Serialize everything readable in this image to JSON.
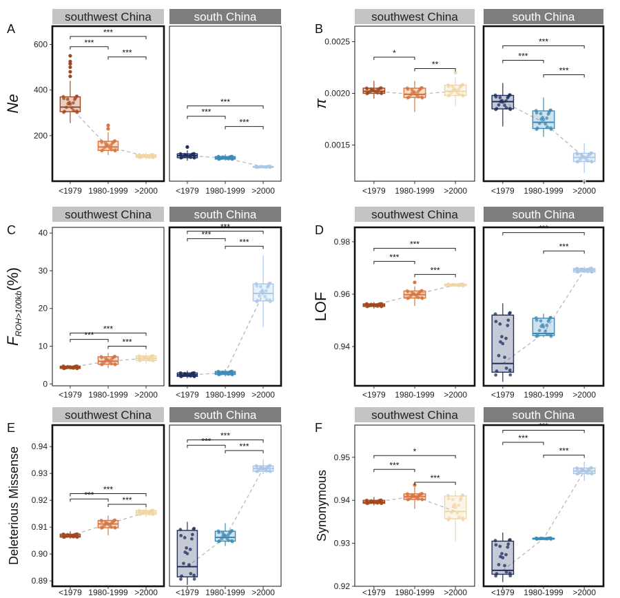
{
  "groups": {
    "categories": [
      "<1979",
      "1980-1999",
      ">2000"
    ],
    "colors": {
      "southwest China": [
        "#a0471d",
        "#d8743d",
        "#f0d6a6"
      ],
      "south China": [
        "#1d2c5c",
        "#3b8ab8",
        "#a9c6e6"
      ]
    },
    "strip_colors": {
      "southwest China": "#c4c4c4",
      "south China": "#7d7d7d"
    }
  },
  "chart_data": [
    {
      "type": "box",
      "panel": "A",
      "ylabel": "Ne",
      "ylabel_italic": true,
      "ylim": [
        0,
        680
      ],
      "yticks": [
        200,
        400,
        600
      ],
      "tick_labels": [
        "200",
        "400",
        "600"
      ],
      "facets": [
        {
          "strip": "southwest China",
          "border": "thick",
          "boxes": [
            {
              "cat": "<1979",
              "min": 255,
              "q1": 305,
              "median": 325,
              "q3": 370,
              "max": 440,
              "outliers": [
                460,
                480,
                500,
                515,
                525,
                550
              ]
            },
            {
              "cat": "1980-1999",
              "min": 115,
              "q1": 135,
              "median": 150,
              "q3": 175,
              "max": 215,
              "outliers": [
                230,
                245
              ]
            },
            {
              "cat": ">2000",
              "min": 95,
              "q1": 104,
              "median": 110,
              "q3": 116,
              "max": 125,
              "outliers": []
            }
          ],
          "brackets": [
            {
              "from": 0,
              "to": 1,
              "y": 590,
              "label": "***"
            },
            {
              "from": 1,
              "to": 2,
              "y": 545,
              "label": "***"
            },
            {
              "from": 0,
              "to": 2,
              "y": 635,
              "label": "***"
            }
          ]
        },
        {
          "strip": "south China",
          "border": "thin",
          "boxes": [
            {
              "cat": "<1979",
              "min": 90,
              "q1": 103,
              "median": 112,
              "q3": 120,
              "max": 135,
              "outliers": [
                150
              ]
            },
            {
              "cat": "1980-1999",
              "min": 90,
              "q1": 97,
              "median": 102,
              "q3": 108,
              "max": 118,
              "outliers": []
            },
            {
              "cat": ">2000",
              "min": 58,
              "q1": 61,
              "median": 63,
              "q3": 65,
              "max": 68,
              "outliers": []
            }
          ],
          "brackets": [
            {
              "from": 0,
              "to": 1,
              "y": 285,
              "label": "***"
            },
            {
              "from": 1,
              "to": 2,
              "y": 240,
              "label": "***"
            },
            {
              "from": 0,
              "to": 2,
              "y": 330,
              "label": "***"
            }
          ]
        }
      ]
    },
    {
      "type": "box",
      "panel": "B",
      "ylabel": "π",
      "ylabel_italic": true,
      "ylim": [
        0.00115,
        0.00265
      ],
      "yticks": [
        0.0015,
        0.002,
        0.0025
      ],
      "tick_labels": [
        "0.0015",
        "0.0020",
        "0.0025"
      ],
      "facets": [
        {
          "strip": "southwest China",
          "border": "thin",
          "boxes": [
            {
              "cat": "<1979",
              "min": 0.00195,
              "q1": 0.002,
              "median": 0.00202,
              "q3": 0.00205,
              "max": 0.00212,
              "outliers": []
            },
            {
              "cat": "1980-1999",
              "min": 0.00182,
              "q1": 0.00196,
              "median": 0.00199,
              "q3": 0.00205,
              "max": 0.00212,
              "outliers": []
            },
            {
              "cat": ">2000",
              "min": 0.00188,
              "q1": 0.00198,
              "median": 0.00202,
              "q3": 0.00208,
              "max": 0.00215,
              "outliers": [
                0.0022
              ]
            }
          ],
          "brackets": [
            {
              "from": 0,
              "to": 1,
              "y": 0.00235,
              "label": "*"
            },
            {
              "from": 1,
              "to": 2,
              "y": 0.00224,
              "label": "**"
            }
          ]
        },
        {
          "strip": "south China",
          "border": "thick",
          "boxes": [
            {
              "cat": "<1979",
              "min": 0.00168,
              "q1": 0.00185,
              "median": 0.00192,
              "q3": 0.00198,
              "max": 0.0021,
              "outliers": []
            },
            {
              "cat": "1980-1999",
              "min": 0.00158,
              "q1": 0.00166,
              "median": 0.00172,
              "q3": 0.00183,
              "max": 0.00196,
              "outliers": []
            },
            {
              "cat": ">2000",
              "min": 0.00123,
              "q1": 0.00134,
              "median": 0.00138,
              "q3": 0.00142,
              "max": 0.00152,
              "outliers": [
                0.00115
              ]
            }
          ],
          "brackets": [
            {
              "from": 0,
              "to": 1,
              "y": 0.00232,
              "label": "***"
            },
            {
              "from": 1,
              "to": 2,
              "y": 0.00218,
              "label": "***"
            },
            {
              "from": 0,
              "to": 2,
              "y": 0.00246,
              "label": "***"
            }
          ]
        }
      ]
    },
    {
      "type": "box",
      "panel": "C",
      "ylabel": "F",
      "ylabel_subscript": "ROH>100kb",
      "ylabel_suffix": "(%)",
      "ylabel_italic": true,
      "ylim": [
        -0.5,
        41.5
      ],
      "yticks": [
        0,
        10,
        20,
        30,
        40
      ],
      "tick_labels": [
        "0",
        "10",
        "20",
        "30",
        "40"
      ],
      "facets": [
        {
          "strip": "southwest China",
          "border": "thin",
          "boxes": [
            {
              "cat": "<1979",
              "min": 3.8,
              "q1": 4.1,
              "median": 4.4,
              "q3": 4.7,
              "max": 5.0,
              "outliers": []
            },
            {
              "cat": "1980-1999",
              "min": 4.2,
              "q1": 5.2,
              "median": 6.0,
              "q3": 7.2,
              "max": 8.2,
              "outliers": []
            },
            {
              "cat": ">2000",
              "min": 5.4,
              "q1": 6.2,
              "median": 6.8,
              "q3": 7.4,
              "max": 8.2,
              "outliers": []
            }
          ],
          "brackets": [
            {
              "from": 0,
              "to": 1,
              "y": 11.8,
              "label": "***"
            },
            {
              "from": 1,
              "to": 2,
              "y": 10.0,
              "label": "***"
            },
            {
              "from": 0,
              "to": 2,
              "y": 13.5,
              "label": "***"
            }
          ]
        },
        {
          "strip": "south China",
          "border": "thick",
          "boxes": [
            {
              "cat": "<1979",
              "min": 1.5,
              "q1": 2.0,
              "median": 2.4,
              "q3": 2.9,
              "max": 3.5,
              "outliers": []
            },
            {
              "cat": "1980-1999",
              "min": 2.0,
              "q1": 2.5,
              "median": 2.9,
              "q3": 3.3,
              "max": 3.9,
              "outliers": []
            },
            {
              "cat": ">2000",
              "min": 15.0,
              "q1": 22.0,
              "median": 24.0,
              "q3": 26.5,
              "max": 34.0,
              "outliers": []
            }
          ],
          "brackets": [
            {
              "from": 0,
              "to": 1,
              "y": 38.5,
              "label": "***"
            },
            {
              "from": 1,
              "to": 2,
              "y": 36.5,
              "label": "***"
            },
            {
              "from": 0,
              "to": 2,
              "y": 40.5,
              "label": "***"
            }
          ]
        }
      ]
    },
    {
      "type": "box",
      "panel": "D",
      "ylabel": "LOF",
      "ylabel_italic": false,
      "ylim": [
        0.925,
        0.9855
      ],
      "yticks": [
        0.94,
        0.96,
        0.98
      ],
      "tick_labels": [
        "0.94",
        "0.96",
        "0.98"
      ],
      "facets": [
        {
          "strip": "southwest China",
          "border": "thick",
          "boxes": [
            {
              "cat": "<1979",
              "min": 0.9545,
              "q1": 0.9553,
              "median": 0.9558,
              "q3": 0.9563,
              "max": 0.957,
              "outliers": []
            },
            {
              "cat": "1980-1999",
              "min": 0.9555,
              "q1": 0.9585,
              "median": 0.9598,
              "q3": 0.9612,
              "max": 0.963,
              "outliers": [
                0.9645
              ]
            },
            {
              "cat": ">2000",
              "min": 0.9628,
              "q1": 0.9632,
              "median": 0.9635,
              "q3": 0.9638,
              "max": 0.9643,
              "outliers": []
            }
          ],
          "brackets": [
            {
              "from": 0,
              "to": 1,
              "y": 0.9725,
              "label": "***"
            },
            {
              "from": 1,
              "to": 2,
              "y": 0.9675,
              "label": "***"
            },
            {
              "from": 0,
              "to": 2,
              "y": 0.9775,
              "label": "***"
            }
          ]
        },
        {
          "strip": "south China",
          "border": "thick",
          "boxes": [
            {
              "cat": "<1979",
              "min": 0.9265,
              "q1": 0.9302,
              "median": 0.9335,
              "q3": 0.952,
              "max": 0.9565,
              "outliers": []
            },
            {
              "cat": "1980-1999",
              "min": 0.9435,
              "q1": 0.9442,
              "median": 0.945,
              "q3": 0.9508,
              "max": 0.9525,
              "outliers": []
            },
            {
              "cat": ">2000",
              "min": 0.968,
              "q1": 0.9685,
              "median": 0.9692,
              "q3": 0.9698,
              "max": 0.9705,
              "outliers": []
            }
          ],
          "brackets": [
            {
              "from": 1,
              "to": 2,
              "y": 0.9765,
              "label": "***"
            },
            {
              "from": 0,
              "to": 2,
              "y": 0.9835,
              "label": "***"
            }
          ]
        }
      ]
    },
    {
      "type": "box",
      "panel": "E",
      "ylabel": "Deleterious Missense",
      "ylabel_italic": false,
      "ylim": [
        0.888,
        0.948
      ],
      "yticks": [
        0.89,
        0.9,
        0.91,
        0.92,
        0.93,
        0.94
      ],
      "tick_labels": [
        "0.89",
        "0.90",
        "0.91",
        "0.92",
        "0.93",
        "0.94"
      ],
      "facets": [
        {
          "strip": "southwest China",
          "border": "thick",
          "boxes": [
            {
              "cat": "<1979",
              "min": 0.9057,
              "q1": 0.9063,
              "median": 0.9068,
              "q3": 0.9074,
              "max": 0.9085,
              "outliers": []
            },
            {
              "cat": "1980-1999",
              "min": 0.907,
              "q1": 0.9098,
              "median": 0.9112,
              "q3": 0.9125,
              "max": 0.9143,
              "outliers": []
            },
            {
              "cat": ">2000",
              "min": 0.9138,
              "q1": 0.9148,
              "median": 0.9155,
              "q3": 0.9162,
              "max": 0.9175,
              "outliers": []
            }
          ],
          "brackets": [
            {
              "from": 0,
              "to": 1,
              "y": 0.9205,
              "label": "***"
            },
            {
              "from": 1,
              "to": 2,
              "y": 0.9185,
              "label": "***"
            },
            {
              "from": 0,
              "to": 2,
              "y": 0.9225,
              "label": "***"
            }
          ]
        },
        {
          "strip": "south China",
          "border": "thin",
          "boxes": [
            {
              "cat": "<1979",
              "min": 0.8885,
              "q1": 0.8915,
              "median": 0.8953,
              "q3": 0.9088,
              "max": 0.912,
              "outliers": []
            },
            {
              "cat": "1980-1999",
              "min": 0.903,
              "q1": 0.9048,
              "median": 0.9062,
              "q3": 0.9085,
              "max": 0.9115,
              "outliers": []
            },
            {
              "cat": ">2000",
              "min": 0.9298,
              "q1": 0.9308,
              "median": 0.9318,
              "q3": 0.9328,
              "max": 0.9352,
              "outliers": []
            }
          ],
          "brackets": [
            {
              "from": 0,
              "to": 1,
              "y": 0.9405,
              "label": "***"
            },
            {
              "from": 1,
              "to": 2,
              "y": 0.9385,
              "label": "***"
            },
            {
              "from": 0,
              "to": 2,
              "y": 0.9425,
              "label": "***"
            }
          ]
        }
      ]
    },
    {
      "type": "box",
      "panel": "F",
      "ylabel": "Synonymous",
      "ylabel_italic": false,
      "ylim": [
        0.92,
        0.9575
      ],
      "yticks": [
        0.92,
        0.93,
        0.94,
        0.95
      ],
      "tick_labels": [
        "0.92",
        "0.93",
        "0.94",
        "0.95"
      ],
      "facets": [
        {
          "strip": "southwest China",
          "border": "thin",
          "boxes": [
            {
              "cat": "<1979",
              "min": 0.9388,
              "q1": 0.9393,
              "median": 0.9396,
              "q3": 0.94,
              "max": 0.9408,
              "outliers": []
            },
            {
              "cat": "1980-1999",
              "min": 0.938,
              "q1": 0.9402,
              "median": 0.9409,
              "q3": 0.9415,
              "max": 0.9432,
              "outliers": [
                0.9436
              ]
            },
            {
              "cat": ">2000",
              "min": 0.9305,
              "q1": 0.9357,
              "median": 0.9374,
              "q3": 0.941,
              "max": 0.9422,
              "outliers": []
            }
          ],
          "brackets": [
            {
              "from": 0,
              "to": 1,
              "y": 0.9472,
              "label": "***"
            },
            {
              "from": 1,
              "to": 2,
              "y": 0.9442,
              "label": "***"
            },
            {
              "from": 0,
              "to": 2,
              "y": 0.9504,
              "label": "*"
            }
          ]
        },
        {
          "strip": "south China",
          "border": "thick",
          "boxes": [
            {
              "cat": "<1979",
              "min": 0.921,
              "q1": 0.9228,
              "median": 0.9237,
              "q3": 0.9305,
              "max": 0.9325,
              "outliers": []
            },
            {
              "cat": "1980-1999",
              "min": 0.9309,
              "q1": 0.931,
              "median": 0.9311,
              "q3": 0.9312,
              "max": 0.9313,
              "outliers": []
            },
            {
              "cat": ">2000",
              "min": 0.9445,
              "q1": 0.9462,
              "median": 0.9468,
              "q3": 0.9475,
              "max": 0.949,
              "outliers": []
            }
          ],
          "brackets": [
            {
              "from": 0,
              "to": 1,
              "y": 0.9535,
              "label": "***"
            },
            {
              "from": 1,
              "to": 2,
              "y": 0.9505,
              "label": "***"
            },
            {
              "from": 0,
              "to": 2,
              "y": 0.9563,
              "label": "***"
            }
          ]
        }
      ]
    }
  ]
}
